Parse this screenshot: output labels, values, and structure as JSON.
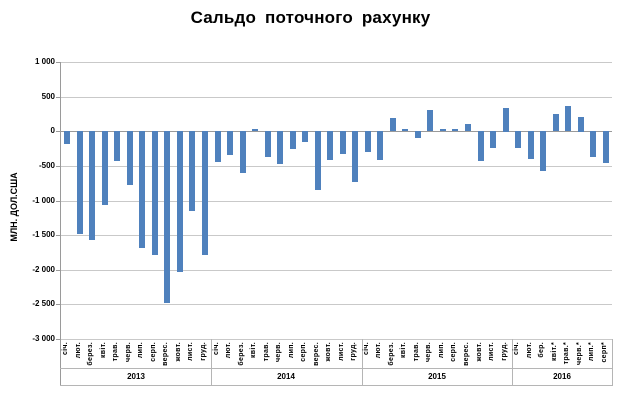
{
  "chart_data": {
    "type": "bar",
    "title": "Сальдо  поточного рахунку",
    "ylabel": "МЛН. ДОЛ.США",
    "bar_color": "#4F81BD",
    "ylim": [
      -3000,
      1000
    ],
    "ytick_step": 500,
    "grid": true,
    "legend": "none",
    "yticks": [
      {
        "value": 1000,
        "label": "1 000"
      },
      {
        "value": 500,
        "label": "500"
      },
      {
        "value": 0,
        "label": "0"
      },
      {
        "value": -500,
        "label": "-500"
      },
      {
        "value": -1000,
        "label": "-1 000"
      },
      {
        "value": -1500,
        "label": "-1 500"
      },
      {
        "value": -2000,
        "label": "-2 000"
      },
      {
        "value": -2500,
        "label": "-2 500"
      },
      {
        "value": -3000,
        "label": "-3 000"
      }
    ],
    "groups": [
      {
        "year": "2013",
        "months": [
          "січ.",
          "лют.",
          "берез.",
          "квіт.",
          "трав.",
          "черв.",
          "лип.",
          "серп.",
          "верес.",
          "жовт.",
          "лист.",
          "груд."
        ],
        "values": [
          -190,
          -1490,
          -1570,
          -1070,
          -440,
          -780,
          -1690,
          -1790,
          -2490,
          -2040,
          -1150,
          -1790
        ]
      },
      {
        "year": "2014",
        "months": [
          "січ.",
          "лют.",
          "берез.",
          "квіт.",
          "трав.",
          "черв.",
          "лип.",
          "серп.",
          "верес.",
          "жовт.",
          "лист.",
          "груд."
        ],
        "values": [
          -450,
          -340,
          -610,
          30,
          -370,
          -480,
          -260,
          -160,
          -850,
          -420,
          -330,
          -740
        ]
      },
      {
        "year": "2015",
        "months": [
          "січ.",
          "лют.",
          "берез.",
          "квіт.",
          "трав.",
          "черв.",
          "лип.",
          "серп.",
          "верес.",
          "жовт.",
          "лист.",
          "груд."
        ],
        "values": [
          -300,
          -420,
          190,
          30,
          -100,
          310,
          30,
          30,
          100,
          -440,
          -250,
          340
        ]
      },
      {
        "year": "2016",
        "months": [
          "січ.",
          "лют.",
          "бер.",
          "квіт.*",
          "трав.*",
          "черв.*",
          "лип.*",
          "серп*"
        ],
        "values": [
          -240,
          -410,
          -575,
          250,
          360,
          210,
          -380,
          -460
        ]
      }
    ]
  }
}
